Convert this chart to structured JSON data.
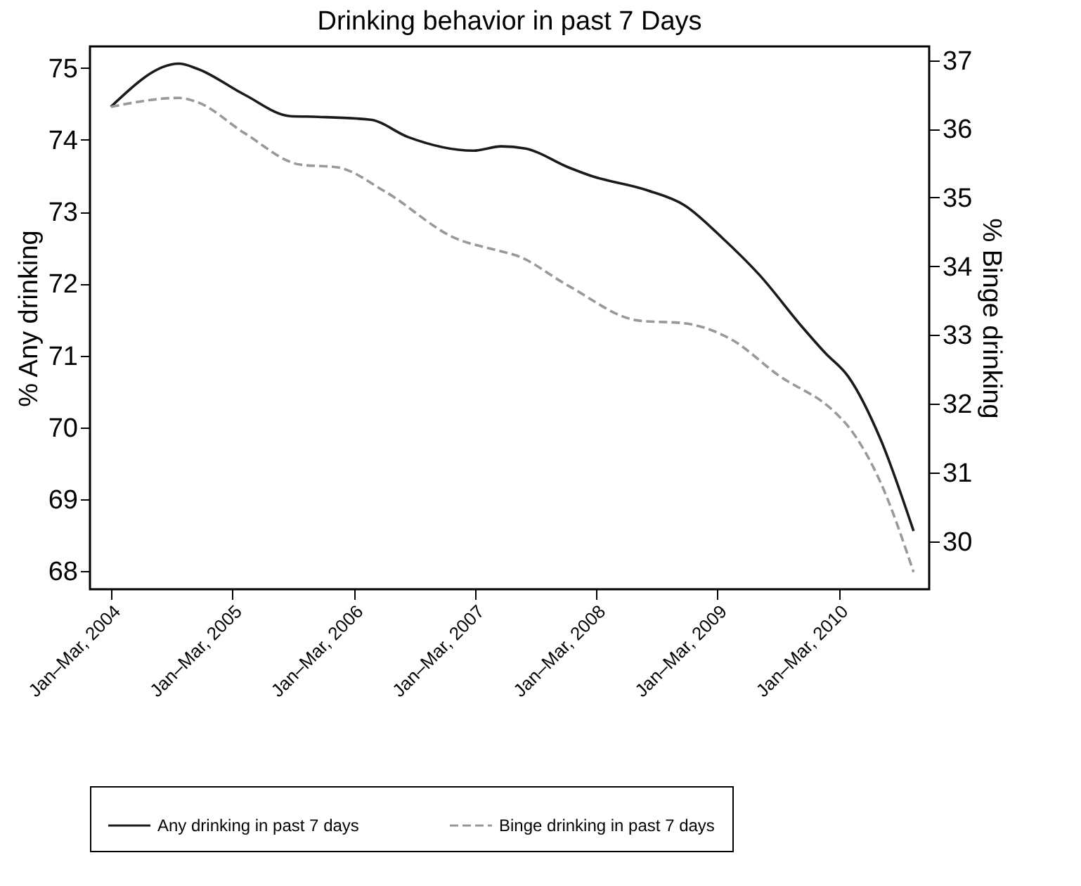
{
  "chart_data": {
    "type": "line",
    "title": "Drinking behavior in past 7 Days",
    "ylabel": "% Any drinking",
    "y2label": "% Binge drinking",
    "xlim": [
      "2003-10-30",
      "2010-10-01"
    ],
    "xticks": [
      {
        "value": "2004-01-01",
        "label": "Jan–Mar, 2004"
      },
      {
        "value": "2005-01-01",
        "label": "Jan–Mar, 2005"
      },
      {
        "value": "2006-01-01",
        "label": "Jan–Mar, 2006"
      },
      {
        "value": "2007-01-01",
        "label": "Jan–Mar, 2007"
      },
      {
        "value": "2008-01-01",
        "label": "Jan–Mar, 2008"
      },
      {
        "value": "2009-01-01",
        "label": "Jan–Mar, 2009"
      },
      {
        "value": "2010-01-01",
        "label": "Jan–Mar, 2010"
      }
    ],
    "ylim": [
      67.75,
      75.3
    ],
    "yticks": [
      68,
      69,
      70,
      71,
      72,
      73,
      74,
      75
    ],
    "y2lim": [
      29.3,
      37.2
    ],
    "y2ticks": [
      30,
      31,
      32,
      33,
      34,
      35,
      36,
      37
    ],
    "grid": false,
    "legend": "bottom",
    "series": [
      {
        "name": "Any drinking in past 7 days",
        "color": "#1a1a1a",
        "line_style": "solid",
        "axis": "y",
        "x": [
          "2004-01-01",
          "2004-07-24",
          "2004-09-17",
          "2005-02-06",
          "2005-06-25",
          "2005-09-17",
          "2006-02-21",
          "2006-06-14",
          "2006-12-28",
          "2007-03-22",
          "2007-06-03",
          "2007-10-09",
          "2007-12-17",
          "2008-06-03",
          "2008-09-24",
          "2009-01-15",
          "2009-05-08",
          "2009-09-13",
          "2009-11-21",
          "2010-01-30",
          "2010-05-08",
          "2010-08-15"
        ],
        "values": [
          74.46,
          75.06,
          74.99,
          74.63,
          74.33,
          74.32,
          74.28,
          74.04,
          73.85,
          73.91,
          73.88,
          73.62,
          73.5,
          73.3,
          73.09,
          72.64,
          72.12,
          71.4,
          71.04,
          70.71,
          69.83,
          68.56
        ]
      },
      {
        "name": "Binge drinking in past 7 days",
        "color": "#999999",
        "line_style": "dashed",
        "axis": "y2",
        "x": [
          "2004-01-01",
          "2004-07-24",
          "2004-09-17",
          "2005-02-06",
          "2005-07-24",
          "2005-11-14",
          "2006-04-05",
          "2006-11-03",
          "2007-03-11",
          "2007-05-05",
          "2007-10-09",
          "2008-05-08",
          "2008-09-24",
          "2009-02-14",
          "2009-07-02",
          "2009-12-20",
          "2010-01-30",
          "2010-05-08",
          "2010-08-15"
        ],
        "values": [
          36.32,
          36.45,
          36.39,
          35.94,
          35.48,
          35.44,
          35.09,
          34.41,
          34.23,
          34.16,
          33.72,
          33.21,
          33.17,
          32.93,
          32.42,
          31.88,
          31.67,
          30.85,
          29.55
        ]
      }
    ]
  }
}
